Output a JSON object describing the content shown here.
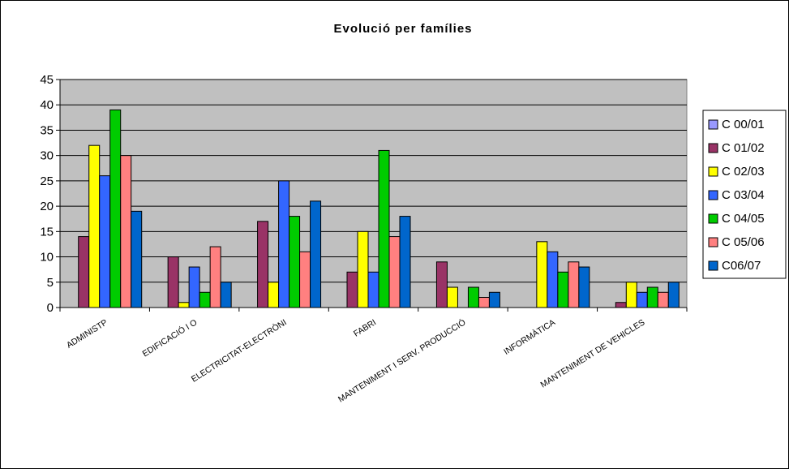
{
  "chart_data": {
    "type": "bar",
    "title": "Evolució per famílies",
    "xlabel": "",
    "ylabel": "",
    "ylim": [
      0,
      45
    ],
    "yticks": [
      0,
      5,
      10,
      15,
      20,
      25,
      30,
      35,
      40,
      45
    ],
    "grid": true,
    "legend_position": "right",
    "plot_background": "#c0c0c0",
    "categories": [
      "ADMINISTP",
      "EDIFICACIÓ I O",
      "ELECTRICITAT-ELECTRÒNI",
      "FABRI",
      "MANTENIMENT I SERV. PRODUCCIÓ",
      "INFORMÀTICA",
      "MANTENIMENT DE VEHICLES"
    ],
    "series": [
      {
        "name": "C 00/01",
        "color": "#9999ff",
        "values": [
          0,
          0,
          0,
          0,
          0,
          0,
          0
        ]
      },
      {
        "name": "C 01/02",
        "color": "#993366",
        "values": [
          14,
          10,
          17,
          7,
          9,
          0,
          1
        ]
      },
      {
        "name": "C 02/03",
        "color": "#ffff00",
        "values": [
          32,
          1,
          5,
          15,
          4,
          13,
          5
        ]
      },
      {
        "name": "C 03/04",
        "color": "#3366ff",
        "values": [
          26,
          8,
          25,
          7,
          0,
          11,
          3
        ]
      },
      {
        "name": "C 04/05",
        "color": "#00cc00",
        "values": [
          39,
          3,
          18,
          31,
          4,
          7,
          4
        ]
      },
      {
        "name": "C 05/06",
        "color": "#ff8080",
        "values": [
          30,
          12,
          11,
          14,
          2,
          9,
          3
        ]
      },
      {
        "name": "C06/07",
        "color": "#0066cc",
        "values": [
          19,
          5,
          21,
          18,
          3,
          8,
          5
        ]
      }
    ]
  }
}
